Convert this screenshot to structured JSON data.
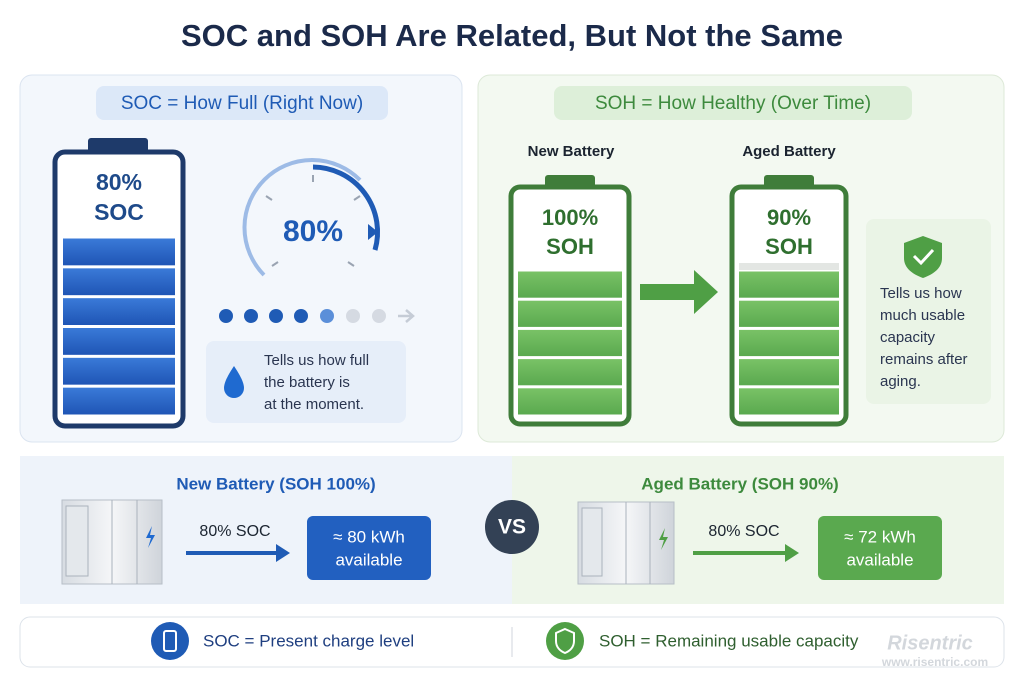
{
  "title": "SOC and SOH Are Related, But Not the Same",
  "soc_panel": {
    "heading": "SOC = How Full (Right Now)",
    "battery_label": [
      "80%",
      "SOC"
    ],
    "gauge_label": "80%",
    "note": [
      "Tells us how full",
      "the battery is",
      "at the moment."
    ]
  },
  "soh_panel": {
    "heading": "SOH = How Healthy (Over Time)",
    "new_battery": {
      "caption": "New Battery",
      "label": [
        "100%",
        "SOH"
      ]
    },
    "aged_battery": {
      "caption": "Aged Battery",
      "label": [
        "90%",
        "SOH"
      ]
    },
    "note": [
      "Tells us how",
      "much usable",
      "capacity",
      "remains after",
      "aging."
    ]
  },
  "comparison": {
    "new": {
      "title": "New Battery (SOH 100%)",
      "soc": "80% SOC",
      "result": [
        "≈ 80 kWh",
        "available"
      ]
    },
    "vs": "VS",
    "aged": {
      "title": "Aged Battery (SOH 90%)",
      "soc": "80% SOC",
      "result": [
        "≈ 72 kWh",
        "available"
      ]
    }
  },
  "footer": {
    "soc": "SOC = Present charge level",
    "soh": "SOH = Remaining usable capacity"
  },
  "watermark": [
    "Risentric",
    "www.risentric.com"
  ]
}
